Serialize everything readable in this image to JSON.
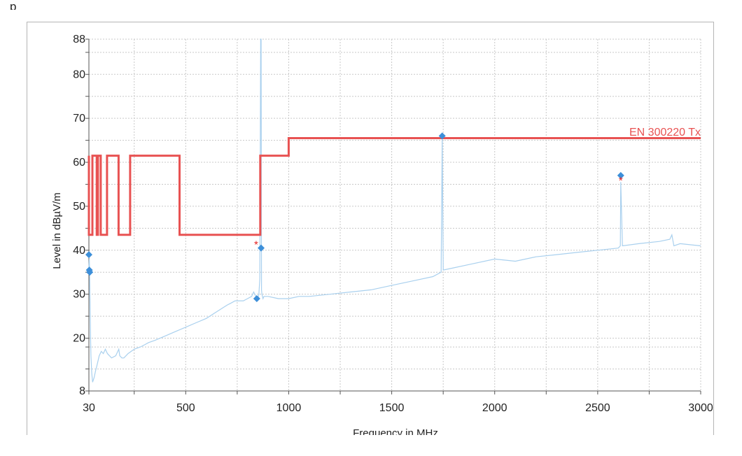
{
  "page": {
    "title": "p"
  },
  "chart_data": {
    "type": "line",
    "title": "",
    "xlabel": "Frequency in MHz",
    "ylabel": "Level in dBµV/m",
    "xlim": [
      30,
      3000
    ],
    "ylim": [
      8,
      88
    ],
    "x_ticks": [
      30,
      500,
      1000,
      1500,
      2000,
      2500,
      3000
    ],
    "y_ticks": [
      8,
      20,
      30,
      40,
      50,
      60,
      70,
      80,
      88
    ],
    "x_grid": [
      30,
      250,
      500,
      750,
      1000,
      1250,
      1500,
      1750,
      2000,
      2250,
      2500,
      2750,
      3000
    ],
    "y_grid": [
      8,
      13,
      18,
      20,
      25,
      30,
      35,
      40,
      45,
      50,
      55,
      60,
      65,
      70,
      75,
      80,
      85,
      88
    ],
    "grid": true,
    "colors": {
      "limit": "#e85252",
      "spectrum": "#a9d0ee",
      "marker": "#3d8fd9",
      "star": "#e52020",
      "grid": "#c8c8c8"
    },
    "series": [
      {
        "name": "EN 300220 Tx",
        "kind": "limit",
        "x": [
          30,
          30,
          47,
          47,
          68,
          68,
          74,
          74,
          87.5,
          87.5,
          118,
          118,
          174,
          174,
          230,
          230,
          470,
          470,
          862,
          862,
          1000,
          1000,
          3000
        ],
        "y": [
          61.5,
          43.5,
          43.5,
          61.5,
          61.5,
          43.5,
          43.5,
          61.5,
          61.5,
          43.5,
          43.5,
          61.5,
          61.5,
          43.5,
          43.5,
          61.5,
          61.5,
          43.5,
          43.5,
          61.5,
          61.5,
          65.5,
          65.5
        ]
      },
      {
        "name": "",
        "kind": "spectrum",
        "x": [
          30,
          32,
          34,
          36,
          38,
          40,
          44,
          48,
          55,
          62,
          70,
          80,
          90,
          100,
          110,
          120,
          140,
          160,
          175,
          180,
          190,
          200,
          220,
          250,
          280,
          300,
          320,
          350,
          400,
          450,
          500,
          550,
          600,
          650,
          700,
          720,
          740,
          760,
          780,
          800,
          820,
          830,
          840,
          845,
          850,
          855,
          860,
          864,
          866,
          868,
          870,
          875,
          880,
          890,
          900,
          950,
          1000,
          1050,
          1100,
          1200,
          1300,
          1400,
          1500,
          1600,
          1700,
          1740,
          1745,
          1750,
          1800,
          1900,
          2000,
          2100,
          2200,
          2300,
          2400,
          2500,
          2600,
          2610,
          2612,
          2620,
          2700,
          2800,
          2850,
          2860,
          2870,
          2900,
          3000
        ],
        "y": [
          36,
          38,
          33,
          26,
          20,
          16,
          12,
          10,
          11,
          12.5,
          14,
          16,
          17,
          16.5,
          17.5,
          16.5,
          15.5,
          16,
          17.5,
          16,
          15.5,
          15.5,
          16.5,
          17.5,
          18,
          18.5,
          19,
          19.5,
          20.5,
          21.5,
          22.5,
          23.5,
          24.5,
          26,
          27.5,
          28,
          28.5,
          28.5,
          28.5,
          29,
          29.5,
          30.5,
          29.5,
          28.5,
          29,
          30,
          33.5,
          88,
          88,
          31,
          30,
          29,
          29.5,
          29.5,
          29.5,
          29,
          29,
          29.5,
          29.5,
          30,
          30.5,
          31,
          32,
          33,
          34,
          35,
          65.5,
          35.5,
          36,
          37,
          38,
          37.5,
          38.5,
          39,
          39.5,
          40,
          40.5,
          41,
          55.5,
          41,
          41.5,
          42,
          42.5,
          43.5,
          41,
          41.5,
          41
        ]
      }
    ],
    "markers": [
      {
        "x": 30,
        "y": 39
      },
      {
        "x": 32,
        "y": 35.5
      },
      {
        "x": 34,
        "y": 35
      },
      {
        "x": 845,
        "y": 29
      },
      {
        "x": 866,
        "y": 40.5
      },
      {
        "x": 1745,
        "y": 66
      },
      {
        "x": 2612,
        "y": 57
      }
    ],
    "stars": [
      {
        "x": 842,
        "y": 41.5
      },
      {
        "x": 2612,
        "y": 56
      }
    ]
  }
}
